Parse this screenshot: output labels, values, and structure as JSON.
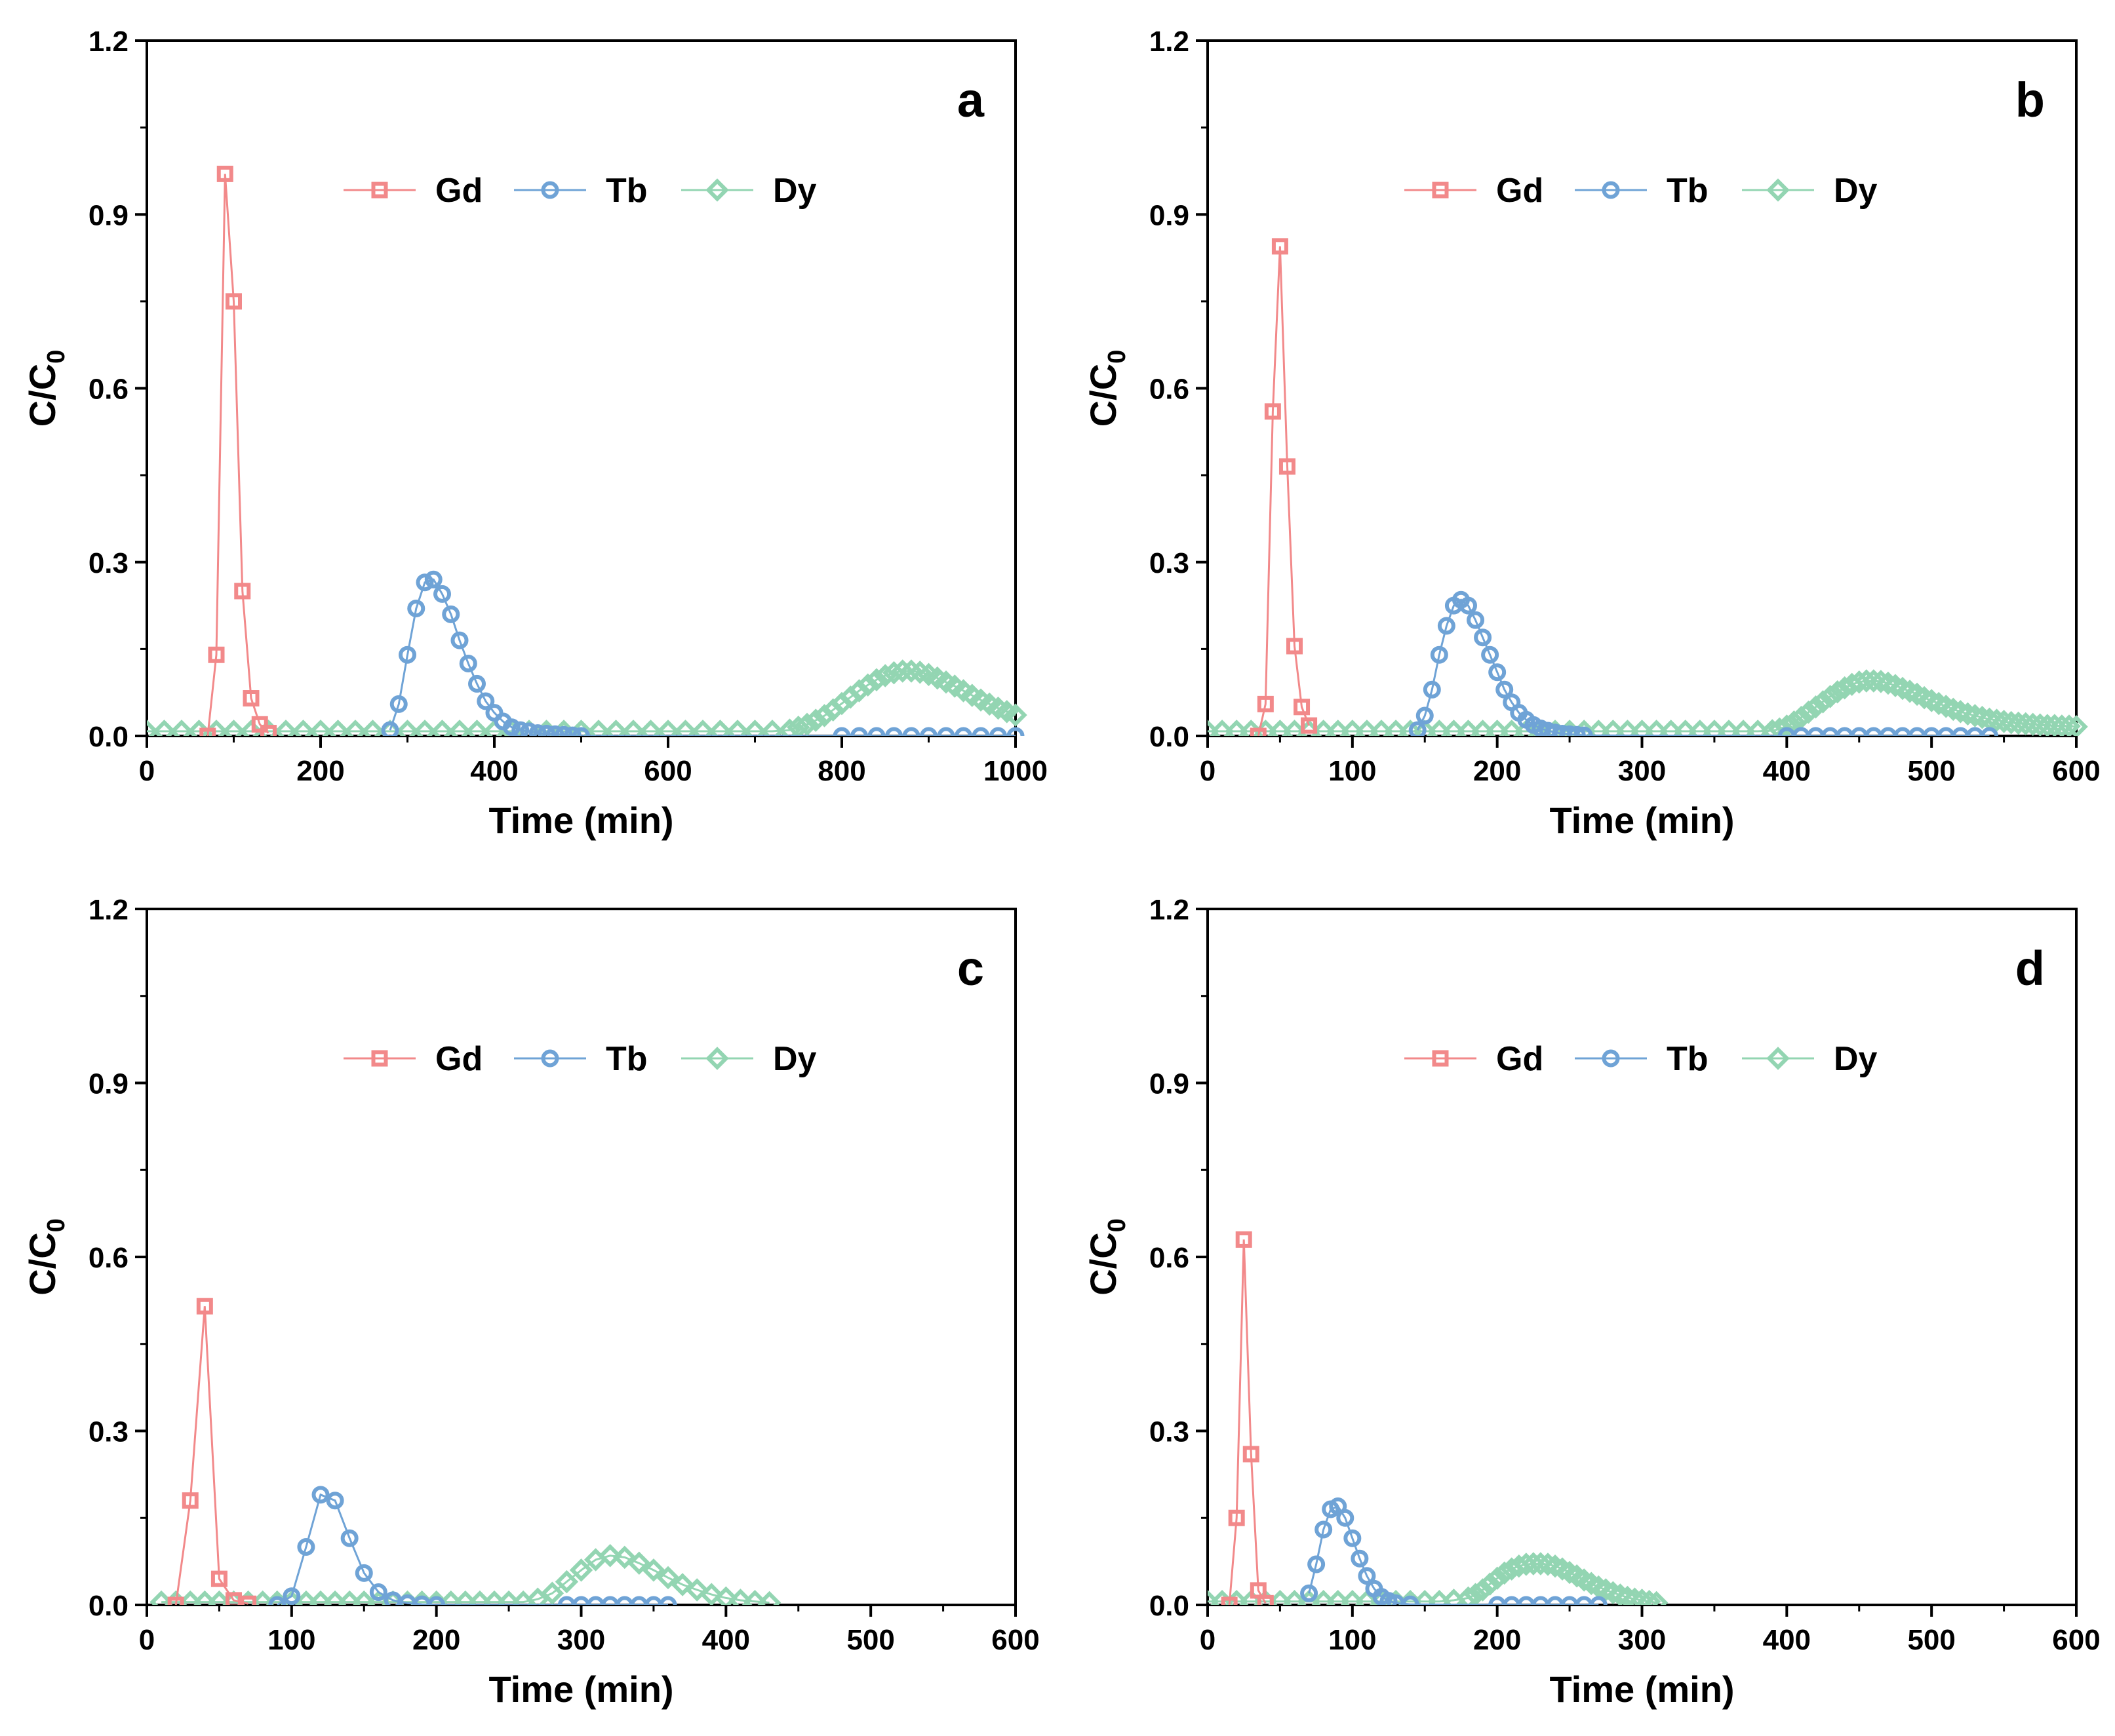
{
  "colors": {
    "Gd": "#f2898a",
    "Tb": "#6fa3d6",
    "Dy": "#93d5b2"
  },
  "chart_data": [
    {
      "panel": "a",
      "type": "line",
      "xlabel": "Time (min)",
      "ylabel": "C/C",
      "ylabel_sub": "0",
      "xlim": [
        0,
        1000
      ],
      "ylim": [
        0,
        1.2
      ],
      "xticks": [
        0,
        200,
        400,
        600,
        800,
        1000
      ],
      "yticks": [
        0.0,
        0.3,
        0.6,
        0.9,
        1.2
      ],
      "ytick_labels": [
        "0.0",
        "0.3",
        "0.6",
        "0.9",
        "1.2"
      ],
      "legend": [
        "Gd",
        "Tb",
        "Dy"
      ],
      "series": [
        {
          "name": "Gd",
          "marker": "square",
          "x": [
            70,
            80,
            90,
            100,
            110,
            120,
            130,
            140
          ],
          "y": [
            0.0,
            0.14,
            0.97,
            0.75,
            0.25,
            0.065,
            0.02,
            0.005
          ]
        },
        {
          "name": "Tb",
          "marker": "circle",
          "x": [
            280,
            290,
            300,
            310,
            320,
            330,
            340,
            350,
            360,
            370,
            380,
            390,
            400,
            410,
            420,
            430,
            440,
            450,
            460,
            470,
            480,
            490,
            500,
            800,
            820,
            840,
            860,
            880,
            900,
            920,
            940,
            960,
            980,
            1000
          ],
          "y": [
            0.01,
            0.055,
            0.14,
            0.22,
            0.265,
            0.27,
            0.245,
            0.21,
            0.165,
            0.125,
            0.09,
            0.06,
            0.04,
            0.025,
            0.015,
            0.01,
            0.008,
            0.005,
            0.004,
            0.003,
            0.002,
            0.001,
            0.0,
            0.0,
            0.0,
            0.0,
            0.0,
            0.0,
            0.0,
            0.0,
            0.0,
            0.0,
            0.0,
            0.0
          ]
        },
        {
          "name": "Dy",
          "marker": "diamond",
          "x": [
            0,
            20,
            40,
            60,
            80,
            100,
            120,
            140,
            160,
            180,
            200,
            220,
            240,
            260,
            280,
            300,
            320,
            340,
            360,
            380,
            400,
            420,
            440,
            460,
            480,
            500,
            520,
            540,
            560,
            580,
            600,
            620,
            640,
            660,
            680,
            700,
            720,
            740,
            750,
            760,
            770,
            780,
            790,
            800,
            810,
            820,
            830,
            840,
            850,
            860,
            870,
            880,
            890,
            900,
            910,
            920,
            930,
            940,
            950,
            960,
            970,
            980,
            990,
            1000
          ],
          "y": [
            0.008,
            0.008,
            0.008,
            0.008,
            0.008,
            0.008,
            0.008,
            0.008,
            0.008,
            0.008,
            0.008,
            0.008,
            0.008,
            0.008,
            0.008,
            0.008,
            0.008,
            0.008,
            0.008,
            0.008,
            0.008,
            0.008,
            0.008,
            0.008,
            0.008,
            0.008,
            0.008,
            0.008,
            0.008,
            0.008,
            0.008,
            0.008,
            0.008,
            0.008,
            0.008,
            0.008,
            0.008,
            0.01,
            0.015,
            0.02,
            0.027,
            0.035,
            0.045,
            0.056,
            0.067,
            0.078,
            0.088,
            0.097,
            0.104,
            0.109,
            0.112,
            0.112,
            0.11,
            0.106,
            0.1,
            0.093,
            0.086,
            0.078,
            0.07,
            0.062,
            0.055,
            0.048,
            0.042,
            0.036
          ]
        }
      ]
    },
    {
      "panel": "b",
      "type": "line",
      "xlabel": "Time (min)",
      "ylabel": "C/C",
      "ylabel_sub": "0",
      "xlim": [
        0,
        600
      ],
      "ylim": [
        0,
        1.2
      ],
      "xticks": [
        0,
        100,
        200,
        300,
        400,
        500,
        600
      ],
      "yticks": [
        0.0,
        0.3,
        0.6,
        0.9,
        1.2
      ],
      "ytick_labels": [
        "0.0",
        "0.3",
        "0.6",
        "0.9",
        "1.2"
      ],
      "legend": [
        "Gd",
        "Tb",
        "Dy"
      ],
      "series": [
        {
          "name": "Gd",
          "marker": "square",
          "x": [
            35,
            40,
            45,
            50,
            55,
            60,
            65,
            70
          ],
          "y": [
            0.0,
            0.055,
            0.56,
            0.845,
            0.465,
            0.155,
            0.05,
            0.018
          ]
        },
        {
          "name": "Tb",
          "marker": "circle",
          "x": [
            145,
            150,
            155,
            160,
            165,
            170,
            175,
            180,
            185,
            190,
            195,
            200,
            205,
            210,
            215,
            220,
            225,
            230,
            235,
            240,
            245,
            250,
            255,
            260,
            400,
            410,
            420,
            430,
            440,
            450,
            460,
            470,
            480,
            490,
            500,
            510,
            520,
            530,
            540
          ],
          "y": [
            0.01,
            0.035,
            0.08,
            0.14,
            0.19,
            0.225,
            0.235,
            0.225,
            0.2,
            0.17,
            0.14,
            0.11,
            0.08,
            0.058,
            0.04,
            0.028,
            0.019,
            0.013,
            0.009,
            0.006,
            0.004,
            0.003,
            0.002,
            0.001,
            0.0,
            0.0,
            0.0,
            0.0,
            0.0,
            0.0,
            0.0,
            0.0,
            0.0,
            0.0,
            0.0,
            0.0,
            0.0,
            0.0,
            0.0
          ]
        },
        {
          "name": "Dy",
          "marker": "diamond",
          "x": [
            0,
            10,
            20,
            30,
            40,
            50,
            60,
            70,
            80,
            90,
            100,
            110,
            120,
            130,
            140,
            150,
            160,
            170,
            180,
            190,
            200,
            210,
            220,
            230,
            240,
            250,
            260,
            270,
            280,
            290,
            300,
            310,
            320,
            330,
            340,
            350,
            360,
            370,
            380,
            390,
            395,
            400,
            405,
            410,
            415,
            420,
            425,
            430,
            435,
            440,
            445,
            450,
            455,
            460,
            465,
            470,
            475,
            480,
            485,
            490,
            495,
            500,
            505,
            510,
            515,
            520,
            525,
            530,
            535,
            540,
            545,
            550,
            555,
            560,
            565,
            570,
            575,
            580,
            585,
            590,
            595,
            600
          ],
          "y": [
            0.008,
            0.008,
            0.008,
            0.008,
            0.008,
            0.008,
            0.008,
            0.008,
            0.008,
            0.008,
            0.008,
            0.008,
            0.008,
            0.008,
            0.008,
            0.008,
            0.008,
            0.008,
            0.008,
            0.008,
            0.008,
            0.008,
            0.008,
            0.008,
            0.008,
            0.008,
            0.008,
            0.008,
            0.008,
            0.008,
            0.008,
            0.008,
            0.008,
            0.008,
            0.008,
            0.008,
            0.008,
            0.008,
            0.008,
            0.009,
            0.012,
            0.017,
            0.024,
            0.032,
            0.041,
            0.05,
            0.059,
            0.068,
            0.076,
            0.083,
            0.089,
            0.093,
            0.095,
            0.095,
            0.094,
            0.091,
            0.087,
            0.082,
            0.077,
            0.072,
            0.066,
            0.061,
            0.056,
            0.051,
            0.046,
            0.042,
            0.038,
            0.035,
            0.032,
            0.029,
            0.027,
            0.025,
            0.023,
            0.022,
            0.021,
            0.02,
            0.019,
            0.018,
            0.018,
            0.017,
            0.017,
            0.016
          ]
        }
      ]
    },
    {
      "panel": "c",
      "type": "line",
      "xlabel": "Time (min)",
      "ylabel": "C/C",
      "ylabel_sub": "0",
      "xlim": [
        0,
        600
      ],
      "ylim": [
        0,
        1.2
      ],
      "xticks": [
        0,
        100,
        200,
        300,
        400,
        500,
        600
      ],
      "yticks": [
        0.0,
        0.3,
        0.6,
        0.9,
        1.2
      ],
      "ytick_labels": [
        "0.0",
        "0.3",
        "0.6",
        "0.9",
        "1.2"
      ],
      "legend": [
        "Gd",
        "Tb",
        "Dy"
      ],
      "series": [
        {
          "name": "Gd",
          "marker": "square",
          "x": [
            20,
            30,
            40,
            50,
            60,
            70
          ],
          "y": [
            0.0,
            0.18,
            0.515,
            0.045,
            0.008,
            0.002
          ]
        },
        {
          "name": "Tb",
          "marker": "circle",
          "x": [
            90,
            100,
            110,
            120,
            130,
            140,
            150,
            160,
            170,
            180,
            190,
            200,
            290,
            300,
            310,
            320,
            330,
            340,
            350,
            360
          ],
          "y": [
            0.0,
            0.015,
            0.1,
            0.19,
            0.18,
            0.115,
            0.055,
            0.022,
            0.008,
            0.003,
            0.001,
            0.0,
            0.0,
            0.0,
            0.0,
            0.0,
            0.0,
            0.0,
            0.0,
            0.0
          ]
        },
        {
          "name": "Dy",
          "marker": "diamond",
          "x": [
            10,
            20,
            30,
            40,
            50,
            60,
            70,
            80,
            90,
            100,
            110,
            120,
            130,
            140,
            150,
            160,
            170,
            180,
            190,
            200,
            210,
            220,
            230,
            240,
            250,
            260,
            270,
            280,
            290,
            300,
            310,
            320,
            330,
            340,
            350,
            360,
            370,
            380,
            390,
            400,
            410,
            420,
            430
          ],
          "y": [
            0.005,
            0.005,
            0.005,
            0.005,
            0.005,
            0.005,
            0.005,
            0.005,
            0.005,
            0.005,
            0.005,
            0.005,
            0.005,
            0.005,
            0.005,
            0.005,
            0.005,
            0.005,
            0.005,
            0.005,
            0.005,
            0.005,
            0.005,
            0.005,
            0.005,
            0.005,
            0.01,
            0.02,
            0.04,
            0.06,
            0.078,
            0.085,
            0.082,
            0.072,
            0.06,
            0.047,
            0.035,
            0.026,
            0.018,
            0.012,
            0.008,
            0.006,
            0.004
          ]
        }
      ]
    },
    {
      "panel": "d",
      "type": "line",
      "xlabel": "Time (min)",
      "ylabel": "C/C",
      "ylabel_sub": "0",
      "xlim": [
        0,
        600
      ],
      "ylim": [
        0,
        1.2
      ],
      "xticks": [
        0,
        100,
        200,
        300,
        400,
        500,
        600
      ],
      "yticks": [
        0.0,
        0.3,
        0.6,
        0.9,
        1.2
      ],
      "ytick_labels": [
        "0.0",
        "0.3",
        "0.6",
        "0.9",
        "1.2"
      ],
      "legend": [
        "Gd",
        "Tb",
        "Dy"
      ],
      "series": [
        {
          "name": "Gd",
          "marker": "square",
          "x": [
            15,
            20,
            25,
            30,
            35,
            40
          ],
          "y": [
            0.0,
            0.15,
            0.63,
            0.26,
            0.025,
            0.003
          ]
        },
        {
          "name": "Tb",
          "marker": "circle",
          "x": [
            70,
            75,
            80,
            85,
            90,
            95,
            100,
            105,
            110,
            115,
            120,
            125,
            130,
            140,
            200,
            210,
            220,
            230,
            240,
            250,
            260,
            270
          ],
          "y": [
            0.02,
            0.07,
            0.13,
            0.165,
            0.17,
            0.15,
            0.115,
            0.08,
            0.05,
            0.028,
            0.014,
            0.007,
            0.003,
            0.001,
            0.0,
            0.0,
            0.0,
            0.0,
            0.0,
            0.0,
            0.0,
            0.0
          ]
        },
        {
          "name": "Dy",
          "marker": "diamond",
          "x": [
            0,
            10,
            20,
            30,
            40,
            50,
            60,
            70,
            80,
            90,
            100,
            110,
            120,
            130,
            140,
            150,
            160,
            170,
            180,
            185,
            190,
            195,
            200,
            205,
            210,
            215,
            220,
            225,
            230,
            235,
            240,
            245,
            250,
            255,
            260,
            265,
            270,
            275,
            280,
            285,
            290,
            295,
            300,
            305,
            310
          ],
          "y": [
            0.006,
            0.006,
            0.006,
            0.006,
            0.006,
            0.006,
            0.006,
            0.006,
            0.006,
            0.006,
            0.006,
            0.006,
            0.006,
            0.006,
            0.006,
            0.006,
            0.006,
            0.008,
            0.012,
            0.018,
            0.026,
            0.036,
            0.046,
            0.055,
            0.062,
            0.067,
            0.07,
            0.071,
            0.071,
            0.07,
            0.067,
            0.062,
            0.056,
            0.05,
            0.043,
            0.037,
            0.031,
            0.026,
            0.021,
            0.017,
            0.013,
            0.01,
            0.008,
            0.006,
            0.004
          ]
        }
      ]
    }
  ]
}
